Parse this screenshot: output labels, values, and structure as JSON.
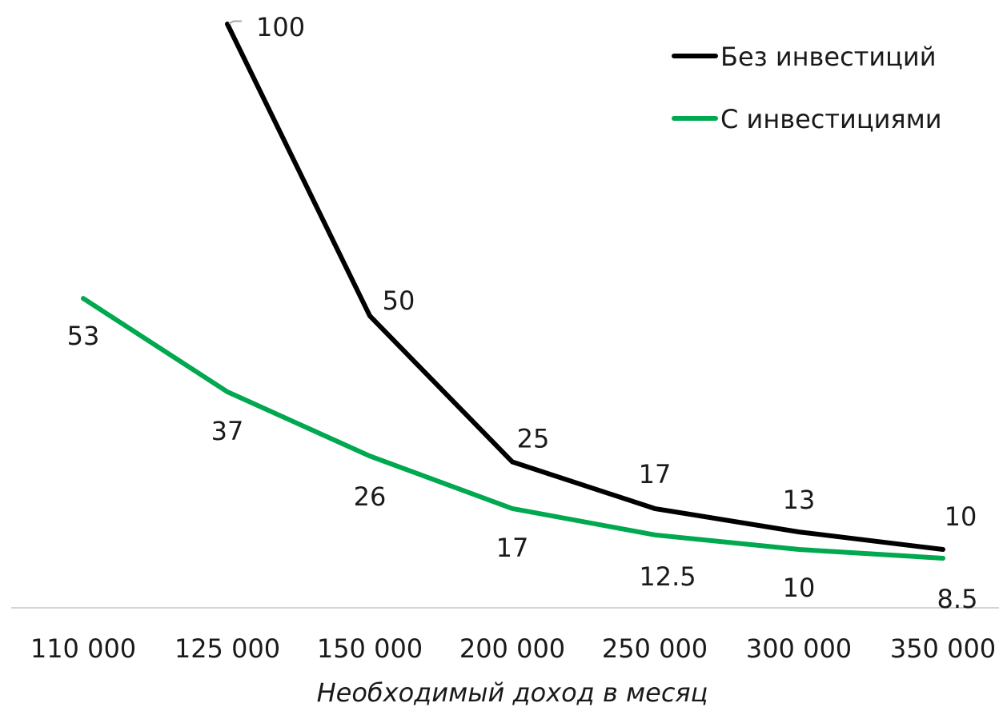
{
  "chart_data": {
    "type": "line",
    "categories": [
      "110 000",
      "125 000",
      "150 000",
      "200 000",
      "250 000",
      "300 000",
      "350 000"
    ],
    "xlabel": "Необходимый доход в месяц",
    "ylabel": "",
    "ylim": [
      0,
      100
    ],
    "grid": false,
    "legend_position": "top-right",
    "series": [
      {
        "name": "Без инвестиций",
        "color": "#000000",
        "values": [
          null,
          100,
          50,
          25,
          17,
          13,
          10
        ],
        "labels": [
          "",
          "100",
          "50",
          "25",
          "17",
          "13",
          "10"
        ]
      },
      {
        "name": "С инвестициями",
        "color": "#00a84f",
        "values": [
          53,
          37,
          26,
          17,
          12.5,
          10,
          8.5
        ],
        "labels": [
          "53",
          "37",
          "26",
          "17",
          "12.5",
          "10",
          "8.5"
        ]
      }
    ]
  }
}
